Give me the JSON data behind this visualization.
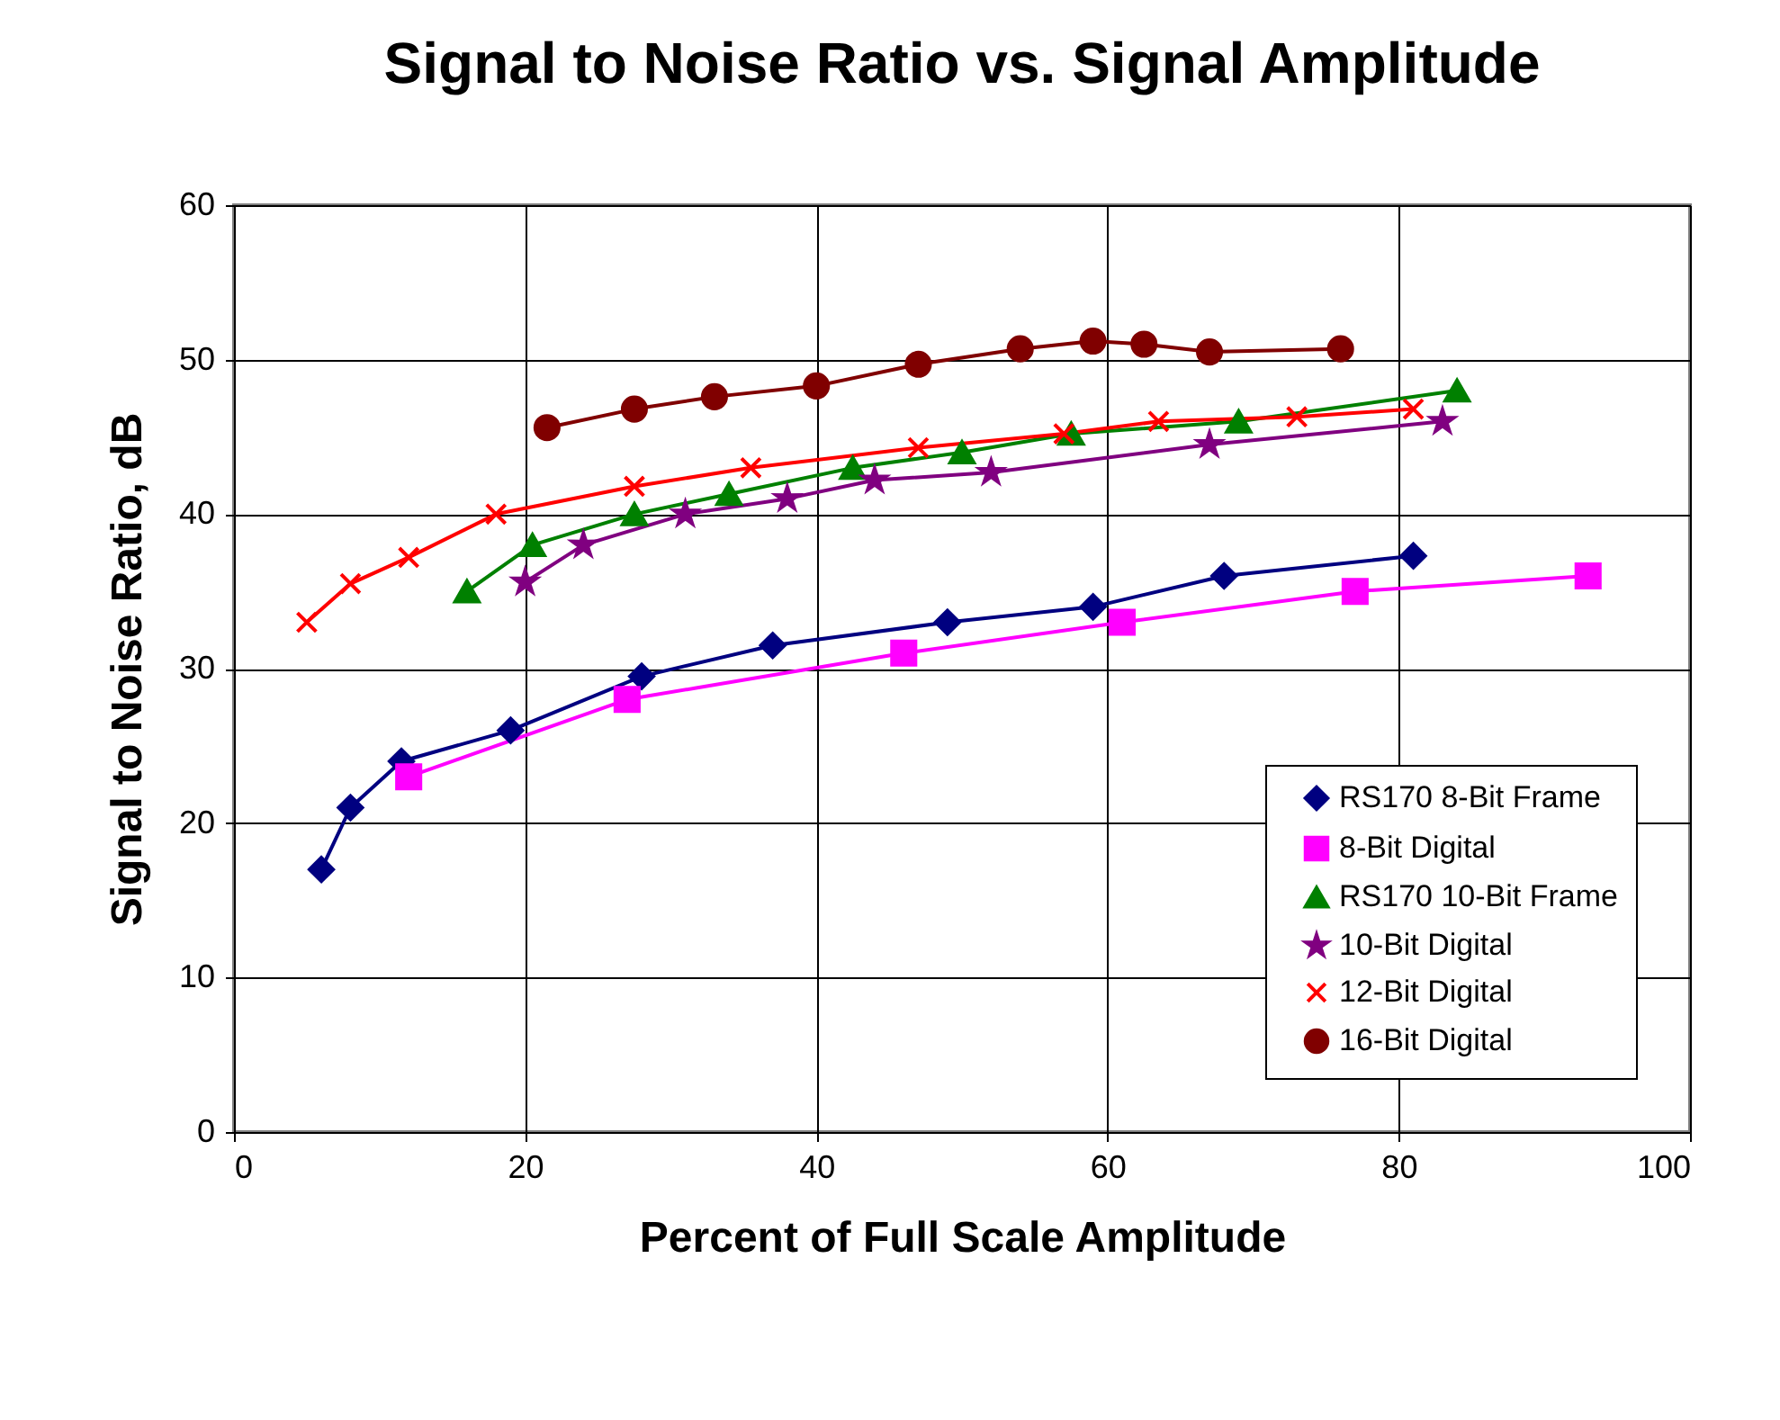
{
  "chart_data": {
    "type": "line",
    "title": "Signal to Noise Ratio vs. Signal Amplitude",
    "xlabel": "Percent of Full Scale Amplitude",
    "ylabel": "Signal to Noise Ratio, dB",
    "xlim": [
      0,
      100
    ],
    "xticks": [
      0,
      20,
      40,
      60,
      80,
      100
    ],
    "ylim": [
      0,
      60
    ],
    "yticks": [
      0,
      10,
      20,
      30,
      40,
      50,
      60
    ],
    "grid": true,
    "legend": "bottom right",
    "series": [
      {
        "name": "RS170 8-Bit Frame",
        "color": "#000080",
        "marker": "diamond",
        "x": [
          6,
          8,
          11.5,
          19,
          28,
          37,
          49,
          59,
          68,
          81
        ],
        "values": [
          17,
          21,
          24,
          26,
          29.5,
          31.5,
          33,
          34,
          36,
          37.3
        ]
      },
      {
        "name": "8-Bit Digital",
        "color": "#ff00ff",
        "marker": "square",
        "x": [
          12,
          27,
          46,
          61,
          77,
          93
        ],
        "values": [
          23,
          28,
          31,
          33,
          35,
          36
        ]
      },
      {
        "name": "RS170 10-Bit Frame",
        "color": "#008000",
        "marker": "triangle",
        "x": [
          16,
          20.5,
          27.5,
          34,
          42.5,
          50,
          57.5,
          69,
          84
        ],
        "values": [
          35,
          38,
          40,
          41.3,
          43,
          44,
          45.2,
          46,
          48
        ]
      },
      {
        "name": "10-Bit Digital",
        "color": "#800080",
        "marker": "star",
        "x": [
          20,
          24,
          31,
          38,
          44,
          52,
          67,
          83
        ],
        "values": [
          35.6,
          38,
          40,
          41,
          42.2,
          42.7,
          44.5,
          46
        ]
      },
      {
        "name": "12-Bit Digital",
        "color": "#ff0000",
        "marker": "cross",
        "x": [
          5,
          8,
          12,
          18,
          27.5,
          35.5,
          47,
          57,
          63.5,
          73,
          81
        ],
        "values": [
          33,
          35.5,
          37.2,
          40,
          41.8,
          43,
          44.3,
          45.2,
          46,
          46.3,
          46.8
        ]
      },
      {
        "name": "16-Bit Digital",
        "color": "#800000",
        "marker": "circle",
        "x": [
          21.5,
          27.5,
          33,
          40,
          47,
          54,
          59,
          62.5,
          67,
          76
        ],
        "values": [
          45.6,
          46.8,
          47.6,
          48.3,
          49.7,
          50.7,
          51.2,
          51,
          50.5,
          50.7
        ]
      }
    ]
  }
}
